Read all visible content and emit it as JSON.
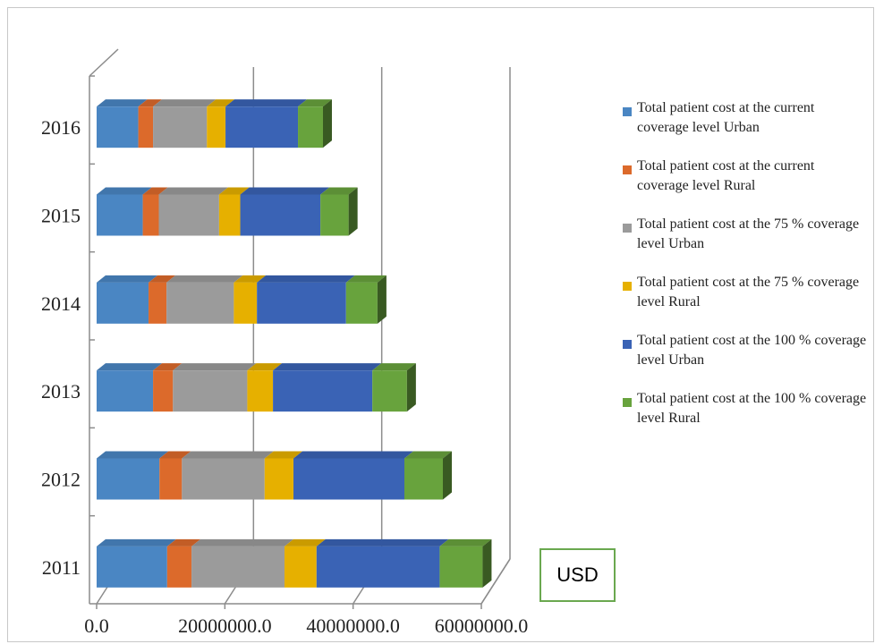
{
  "unit_label": "USD",
  "colors": {
    "urban_current": "#4a86c3",
    "rural_current": "#dc6a2b",
    "urban_75": "#9b9b9b",
    "rural_75": "#e6b000",
    "urban_100": "#3a63b5",
    "rural_100": "#68a33d"
  },
  "chart_data": {
    "type": "bar",
    "orientation": "horizontal-stacked-3d",
    "categories": [
      "2011",
      "2012",
      "2013",
      "2014",
      "2015",
      "2016"
    ],
    "x_ticks": [
      "0.0",
      "20000000.0",
      "40000000.0",
      "60000000.0"
    ],
    "xlim": [
      0,
      60000000
    ],
    "grid": true,
    "legend_position": "right",
    "series": [
      {
        "name": "Total patient cost at the current coverage level Urban",
        "color_key": "urban_current",
        "values": [
          11000000,
          9800000,
          8800000,
          8100000,
          7200000,
          6500000
        ]
      },
      {
        "name": "Total patient cost at the current coverage level Rural",
        "color_key": "rural_current",
        "values": [
          3800000,
          3500000,
          3100000,
          2800000,
          2500000,
          2300000
        ]
      },
      {
        "name": "Total patient cost at the 75 % coverage level Urban",
        "color_key": "urban_75",
        "values": [
          14500000,
          12900000,
          11600000,
          10500000,
          9400000,
          8400000
        ]
      },
      {
        "name": "Total patient cost at the 75 % coverage level Rural",
        "color_key": "rural_75",
        "values": [
          5000000,
          4500000,
          4000000,
          3600000,
          3300000,
          2900000
        ]
      },
      {
        "name": "Total patient cost at the 100 % coverage level Urban",
        "color_key": "urban_100",
        "values": [
          19200000,
          17300000,
          15500000,
          13900000,
          12500000,
          11300000
        ]
      },
      {
        "name": "Total patient cost at the 100 % coverage level Rural",
        "color_key": "rural_100",
        "values": [
          6700000,
          6000000,
          5400000,
          4900000,
          4400000,
          3900000
        ]
      }
    ]
  }
}
